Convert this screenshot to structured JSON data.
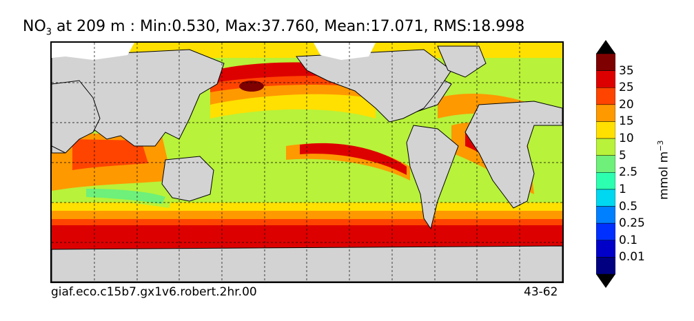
{
  "title": {
    "prefix": "NO",
    "subscript": "3",
    "rest": " at 209 m : Min:0.530, Max:37.760, Mean:17.071, RMS:18.998"
  },
  "footer": {
    "run_id": "giaf.eco.c15b7.gx1v6.robert.2hr.00",
    "years": "43-62"
  },
  "colorbar": {
    "unit": "mmol m",
    "unit_exp": "−3",
    "levels": [
      {
        "label": "35",
        "color": "#7f0000"
      },
      {
        "label": "25",
        "color": "#dd0000"
      },
      {
        "label": "20",
        "color": "#ff4400"
      },
      {
        "label": "15",
        "color": "#ff9900"
      },
      {
        "label": "10",
        "color": "#ffe000"
      },
      {
        "label": "5",
        "color": "#b8f23a"
      },
      {
        "label": "2.5",
        "color": "#6ef07a"
      },
      {
        "label": "1",
        "color": "#2dffb0"
      },
      {
        "label": "0.5",
        "color": "#00d7f0"
      },
      {
        "label": "0.25",
        "color": "#0080ff"
      },
      {
        "label": "0.1",
        "color": "#0030ff"
      },
      {
        "label": "0.01",
        "color": "#0000c8"
      }
    ],
    "over_color": "#000000",
    "under_color": "#000000"
  },
  "map": {
    "land_color": "#d3d3d3",
    "ice_color": "#ffffff",
    "grid": true
  }
}
